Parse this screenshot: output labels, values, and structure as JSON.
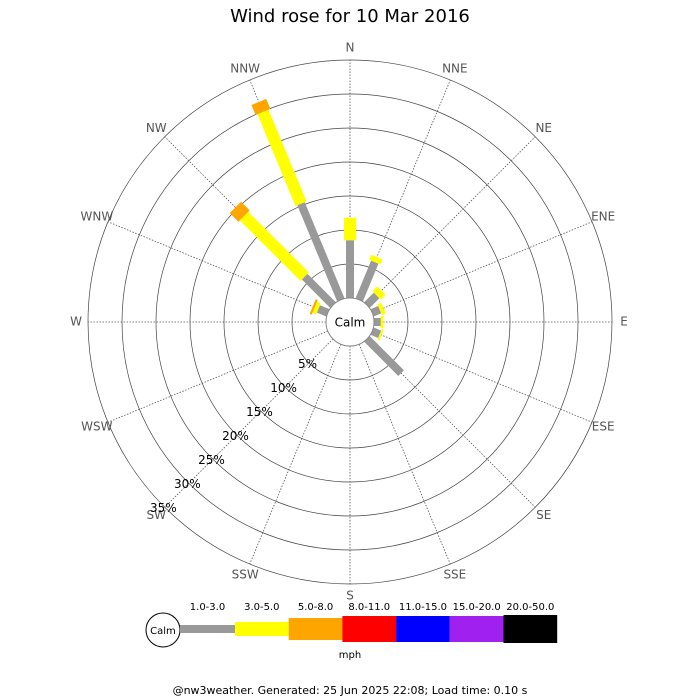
{
  "chart_data": {
    "type": "windrose",
    "title": "Wind rose for 10 Mar 2016",
    "categories": [
      "N",
      "NNE",
      "NE",
      "ENE",
      "E",
      "ESE",
      "SE",
      "SSE",
      "S",
      "SSW",
      "SW",
      "WSW",
      "W",
      "WNW",
      "NW",
      "NNW"
    ],
    "series": [
      {
        "name": "1.0-3.0",
        "color": "#999999",
        "values": [
          8.5,
          6.0,
          2.0,
          1.2,
          1.0,
          1.2,
          7.1,
          0,
          0,
          0,
          0,
          0,
          0,
          1.5,
          5.9,
          15.3
        ]
      },
      {
        "name": "3.0-5.0",
        "color": "#ffff00",
        "values": [
          3.3,
          0.8,
          1.0,
          0.6,
          0.4,
          0.3,
          0,
          0,
          0,
          0,
          0,
          0,
          0,
          0.6,
          12.6,
          14.6
        ]
      },
      {
        "name": "5.0-8.0",
        "color": "#ffa500",
        "values": [
          0,
          0,
          0,
          0,
          0,
          0,
          0,
          0,
          0,
          0,
          0,
          0,
          0,
          0.3,
          1.8,
          1.6
        ]
      },
      {
        "name": "8.0-11.0",
        "color": "#ff0000",
        "values": [
          0,
          0,
          0,
          0,
          0,
          0,
          0,
          0,
          0,
          0,
          0,
          0,
          0,
          0,
          0,
          0
        ]
      },
      {
        "name": "11.0-15.0",
        "color": "#0000ff",
        "values": [
          0,
          0,
          0,
          0,
          0,
          0,
          0,
          0,
          0,
          0,
          0,
          0,
          0,
          0,
          0,
          0
        ]
      },
      {
        "name": "15.0-20.0",
        "color": "#a020f0",
        "values": [
          0,
          0,
          0,
          0,
          0,
          0,
          0,
          0,
          0,
          0,
          0,
          0,
          0,
          0,
          0,
          0
        ]
      },
      {
        "name": "20.0-50.0",
        "color": "#000000",
        "values": [
          0,
          0,
          0,
          0,
          0,
          0,
          0,
          0,
          0,
          0,
          0,
          0,
          0,
          0,
          0,
          0
        ]
      }
    ],
    "ylim": [
      0,
      35
    ],
    "yticks": [
      {
        "value": 5,
        "label": "5%"
      },
      {
        "value": 10,
        "label": "10%"
      },
      {
        "value": 15,
        "label": "15%"
      },
      {
        "value": 20,
        "label": "20%"
      },
      {
        "value": 25,
        "label": "25%"
      },
      {
        "value": 30,
        "label": "30%"
      },
      {
        "value": 35,
        "label": "35%"
      }
    ],
    "calm_label": "Calm",
    "legend_unit": "mph",
    "footer": "@nw3weather. Generated: 25 Jun 2025 22:08; Load time: 0.10 s"
  }
}
